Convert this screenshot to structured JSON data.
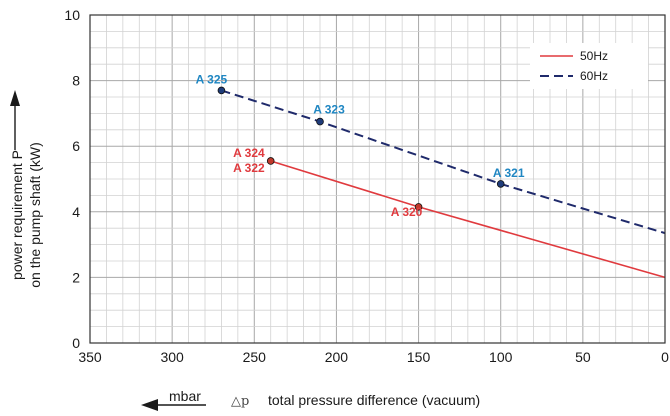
{
  "chart_data": {
    "type": "line",
    "xlabel_unit": "mbar",
    "xlabel_symbol": "△p",
    "xlabel": "total pressure difference (vacuum)",
    "ylabel_line1": "power requirement P",
    "ylabel_line2": "on the pump shaft (kW)",
    "xlim": [
      350,
      0
    ],
    "ylim": [
      0,
      10
    ],
    "x_ticks": [
      350,
      300,
      250,
      200,
      150,
      100,
      50,
      0
    ],
    "y_ticks": [
      0,
      2,
      4,
      6,
      8,
      10
    ],
    "x_tick_labels": [
      "350",
      "300",
      "250",
      "200",
      "150",
      "100",
      "50",
      "0"
    ],
    "y_tick_labels": [
      "0",
      "2",
      "4",
      "6",
      "8",
      "10"
    ],
    "grid": true,
    "legend_position": "top-right",
    "series": [
      {
        "name": "50Hz",
        "style": "solid",
        "color": "#e03a3e",
        "x": [
          240,
          150,
          0
        ],
        "y": [
          5.55,
          4.15,
          2.0
        ]
      },
      {
        "name": "60Hz",
        "style": "dashed",
        "color": "#1f2a6b",
        "x": [
          270,
          210,
          100,
          0
        ],
        "y": [
          7.7,
          6.75,
          4.85,
          3.35
        ]
      }
    ],
    "points": [
      {
        "label": "A 325",
        "x": 270,
        "y": 7.7,
        "color": "#1f86c2"
      },
      {
        "label": "A 323",
        "x": 210,
        "y": 6.75,
        "color": "#1f86c2"
      },
      {
        "label": "A 321",
        "x": 100,
        "y": 4.85,
        "color": "#1f86c2"
      },
      {
        "label": "A 324",
        "x": 240,
        "y": 5.55,
        "color": "#e03a3e"
      },
      {
        "label": "A 322",
        "x": 240,
        "y": 5.55,
        "color": "#e03a3e"
      },
      {
        "label": "A 320",
        "x": 150,
        "y": 4.15,
        "color": "#e03a3e"
      }
    ]
  }
}
